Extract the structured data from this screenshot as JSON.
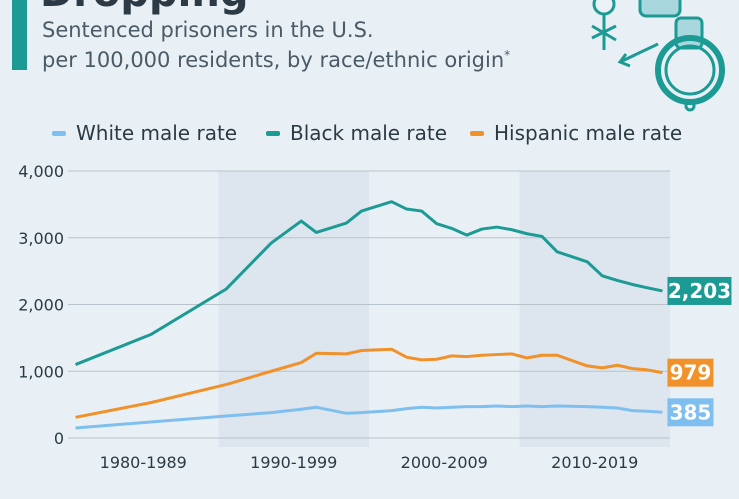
{
  "header": {
    "title_fragment": "Dropping",
    "subtitle_line1": "Sentenced prisoners in the U.S.",
    "subtitle_line2": "per 100,000 residents, by race/ethnic origin",
    "subtitle_marker": "*"
  },
  "decoration": {
    "icon": "handcuffs-gender-symbols-icon"
  },
  "colors": {
    "background": "#e9f0f5",
    "band": "#dde5ee",
    "grid": "#b9c3cc",
    "white": "#7fbfef",
    "black": "#1c9a94",
    "hispanic": "#f0912a",
    "text": "#2b3a45"
  },
  "chart_data": {
    "type": "line",
    "x": [
      1980,
      1985,
      1990,
      1993,
      1995,
      1996,
      1998,
      1999,
      2001,
      2002,
      2003,
      2004,
      2005,
      2006,
      2007,
      2008,
      2009,
      2010,
      2011,
      2012,
      2014,
      2015,
      2016,
      2017,
      2018,
      2019
    ],
    "xlim": [
      1979.5,
      2019.5
    ],
    "ylim": [
      0,
      4000
    ],
    "yticks": [
      "0",
      "1,000",
      "2,000",
      "3,000",
      "4,000"
    ],
    "decade_labels": [
      "1980-1989",
      "1990-1999",
      "2000-2009",
      "2010-2019"
    ],
    "shaded_decades": [
      [
        1990,
        1999
      ],
      [
        2010,
        2019
      ]
    ],
    "grid": true,
    "legend_position": "top",
    "series": [
      {
        "name": "White male rate",
        "color": "#7fbfef",
        "values": [
          150,
          240,
          330,
          380,
          430,
          460,
          370,
          380,
          410,
          440,
          460,
          450,
          460,
          470,
          470,
          480,
          470,
          480,
          470,
          480,
          470,
          460,
          450,
          410,
          400,
          385
        ],
        "end_label": "385"
      },
      {
        "name": "Black male rate",
        "color": "#1c9a94",
        "values": [
          1100,
          1550,
          2230,
          2920,
          3250,
          3080,
          3220,
          3400,
          3540,
          3430,
          3400,
          3210,
          3140,
          3040,
          3130,
          3160,
          3120,
          3060,
          3020,
          2790,
          2640,
          2430,
          2360,
          2300,
          2250,
          2203
        ],
        "end_label": "2,203"
      },
      {
        "name": "Hispanic male rate",
        "color": "#f0912a",
        "values": [
          310,
          530,
          800,
          1000,
          1130,
          1270,
          1260,
          1310,
          1330,
          1210,
          1170,
          1180,
          1230,
          1220,
          1240,
          1250,
          1260,
          1200,
          1240,
          1240,
          1080,
          1050,
          1090,
          1040,
          1020,
          979
        ],
        "end_label": "979"
      }
    ]
  }
}
